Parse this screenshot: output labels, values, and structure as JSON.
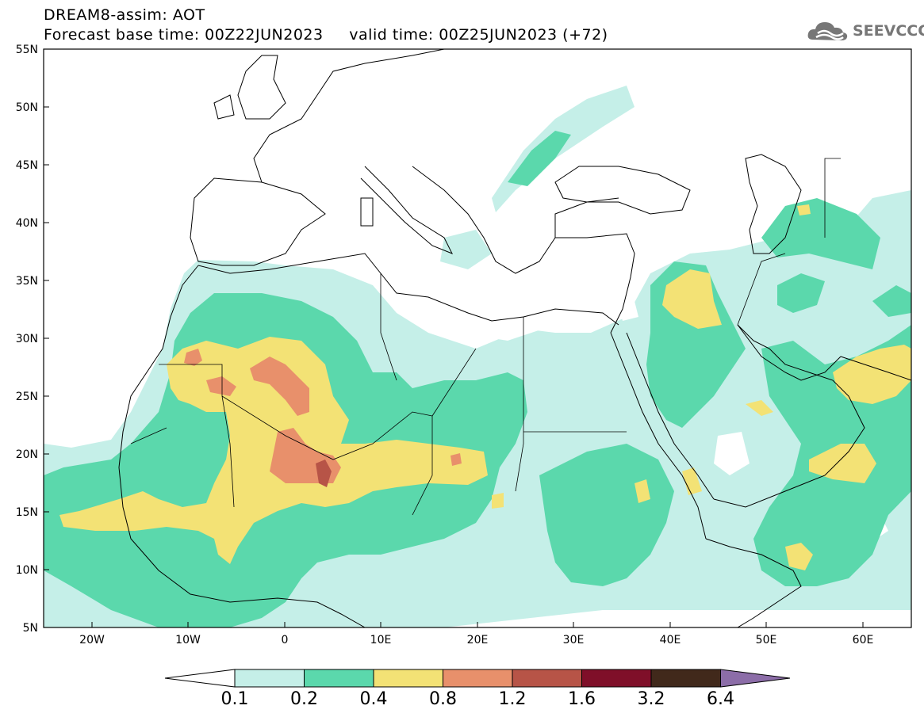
{
  "header": {
    "title": "DREAM8-assim: AOT",
    "subtitle": "Forecast base time: 00Z22JUN2023     valid time: 00Z25JUN2023 (+72)",
    "logo_text": "SEEVCCC"
  },
  "map": {
    "lon_range": [
      -25,
      65
    ],
    "lat_range": [
      5,
      55
    ],
    "lat_ticks": [
      "55N",
      "50N",
      "45N",
      "40N",
      "35N",
      "30N",
      "25N",
      "20N",
      "15N",
      "10N",
      "5N"
    ],
    "lon_ticks": [
      "20W",
      "10W",
      "0",
      "10E",
      "20E",
      "30E",
      "40E",
      "50E",
      "60E"
    ]
  },
  "colorbar": {
    "labels": [
      "0.1",
      "0.2",
      "0.4",
      "0.8",
      "1.2",
      "1.6",
      "3.2",
      "6.4"
    ],
    "colors": [
      "#c5efe8",
      "#5bd8ac",
      "#f3e275",
      "#e8906b",
      "#b75447",
      "#7f0f29",
      "#41291b",
      "#8c6da8"
    ],
    "under_color": "#ffffff"
  }
}
